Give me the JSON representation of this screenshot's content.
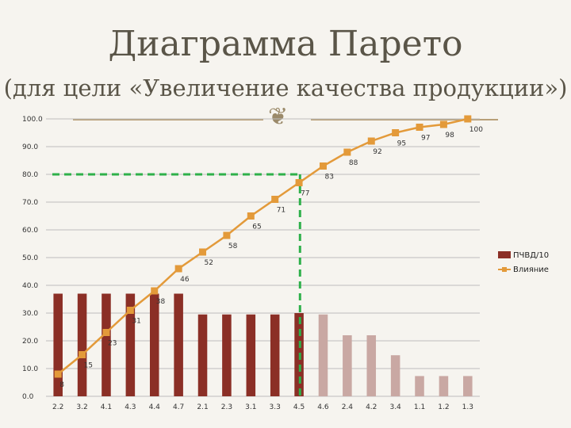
{
  "header": {
    "title": "Диаграмма Парето",
    "subtitle": "(для цели «Увеличение качества продукции»)"
  },
  "colors": {
    "bar_strong": "#8b2f26",
    "bar_faded": "#c9a8a3",
    "line": "#e39a3a",
    "cutoff": "#2eb04a",
    "grid": "#bdbdbd"
  },
  "chart_data": {
    "type": "bar",
    "categories": [
      "2.2",
      "3.2",
      "4.1",
      "4.3",
      "4.4",
      "4.7",
      "2.1",
      "2.3",
      "3.1",
      "3.3",
      "4.5",
      "4.6",
      "2.4",
      "4.2",
      "3.4",
      "1.1",
      "1.2",
      "1.3"
    ],
    "ylim": [
      0,
      100
    ],
    "yticks": [
      "0.0",
      "10.0",
      "20.0",
      "30.0",
      "40.0",
      "50.0",
      "60.0",
      "70.0",
      "80.0",
      "90.0",
      "100.0"
    ],
    "grid": true,
    "legend_position": "right",
    "series": [
      {
        "name": "ПЧВД/10",
        "kind": "bar",
        "values": [
          37,
          37,
          37,
          37,
          37,
          37,
          29.5,
          29.5,
          29.5,
          29.5,
          30,
          29.5,
          22,
          22,
          14.8,
          7.3,
          7.3,
          7.3
        ],
        "faded_from_index": 11
      },
      {
        "name": "Влияние",
        "kind": "line",
        "values": [
          8,
          15,
          23,
          31,
          38,
          46,
          52,
          58,
          65,
          71,
          77,
          83,
          88,
          92,
          95,
          97,
          98,
          100
        ],
        "labels": [
          "8",
          "15",
          "23",
          "31",
          "38",
          "46",
          "52",
          "58",
          "65",
          "71",
          "77",
          "83",
          "88",
          "92",
          "95",
          "97",
          "98",
          "100"
        ]
      }
    ],
    "cutoff": {
      "y": 80,
      "after_index": 10
    }
  }
}
